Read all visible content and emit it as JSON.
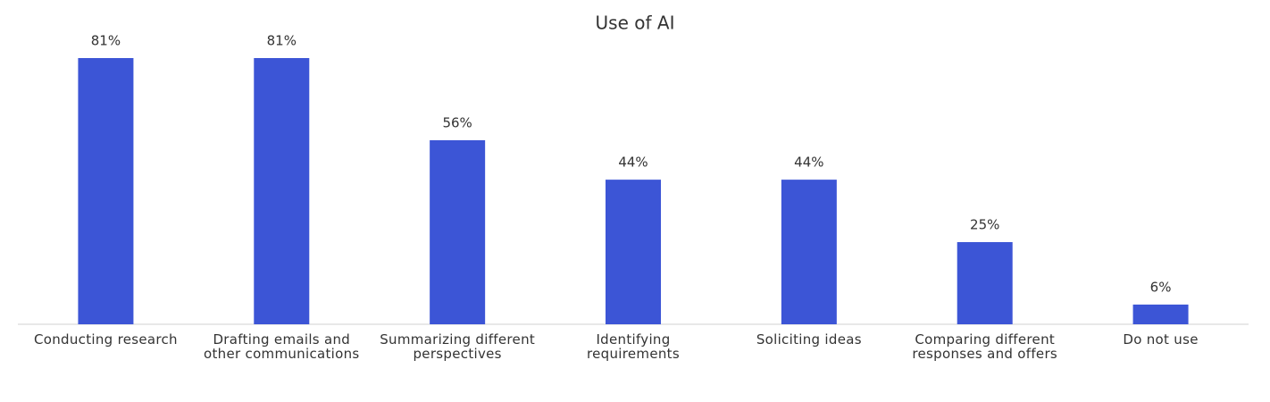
{
  "chart_data": {
    "type": "bar",
    "title": "Use of AI",
    "categories": [
      "Conducting research",
      "Drafting emails and other communications",
      "Summarizing different perspectives",
      "Identifying requirements",
      "Soliciting ideas",
      "Comparing different responses and offers",
      "Do not use"
    ],
    "values": [
      81,
      81,
      56,
      44,
      44,
      25,
      6
    ],
    "value_labels": [
      "81%",
      "81%",
      "56%",
      "44%",
      "44%",
      "25%",
      "6%"
    ],
    "color": "#3c55d6"
  }
}
